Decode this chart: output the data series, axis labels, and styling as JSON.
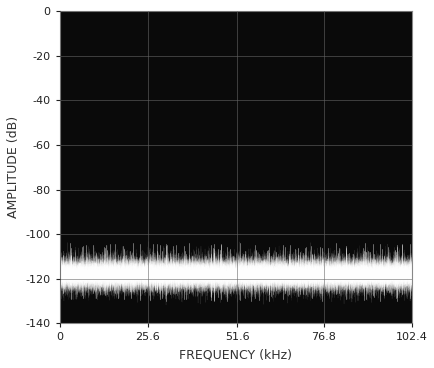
{
  "background_color": "#0a0a0a",
  "figure_bg_color": "#ffffff",
  "grid_color": "#666666",
  "signal_color": "#ffffff",
  "xlabel": "FREQUENCY (kHz)",
  "ylabel": "AMPLITUDE (dB)",
  "xlim": [
    0,
    102.4
  ],
  "ylim": [
    -140,
    0
  ],
  "xticks": [
    0,
    25.6,
    51.6,
    76.8,
    102.4
  ],
  "yticks": [
    0,
    -20,
    -40,
    -60,
    -80,
    -100,
    -120,
    -140
  ],
  "xlabel_fontsize": 9,
  "ylabel_fontsize": 9,
  "tick_fontsize": 8,
  "noise_floor_mean": -118,
  "noise_floor_std": 3.5,
  "spike_top": -105,
  "figsize": [
    4.35,
    3.68
  ],
  "dpi": 100,
  "tick_label_color": "#222222",
  "axis_label_color": "#333333"
}
